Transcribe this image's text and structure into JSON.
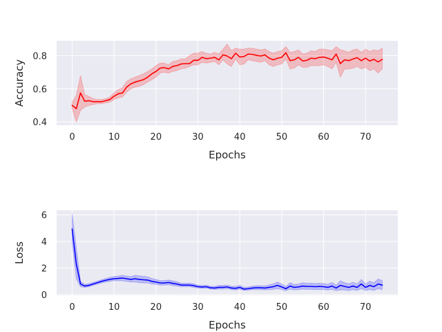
{
  "chart_data": [
    {
      "type": "line",
      "xlabel": "Epochs",
      "ylabel": "Accuracy",
      "xlim": [
        -3.7,
        77.7
      ],
      "ylim": [
        0.38,
        0.89
      ],
      "xticks": [
        0,
        10,
        20,
        30,
        40,
        50,
        60,
        70
      ],
      "yticks": [
        0.4,
        0.6,
        0.8
      ],
      "ytick_labels": [
        "0.4",
        "0.6",
        "0.8"
      ],
      "background": "#eaeaf2",
      "grid": true,
      "line_color": "#ff0000",
      "band_color": "#ff0000",
      "series": [
        {
          "x": [
            0,
            1,
            2,
            3,
            4,
            5,
            6,
            7,
            8,
            9,
            10,
            11,
            12,
            13,
            14,
            15,
            16,
            17,
            18,
            19,
            20,
            21,
            22,
            23,
            24,
            25,
            26,
            27,
            28,
            29,
            30,
            31,
            32,
            33,
            34,
            35,
            36,
            37,
            38,
            39,
            40,
            41,
            42,
            43,
            44,
            45,
            46,
            47,
            48,
            49,
            50,
            51,
            52,
            53,
            54,
            55,
            56,
            57,
            58,
            59,
            60,
            61,
            62,
            63,
            64,
            65,
            66,
            67,
            68,
            69,
            70,
            71,
            72,
            73,
            74
          ],
          "y": [
            0.5,
            0.48,
            0.575,
            0.525,
            0.528,
            0.522,
            0.522,
            0.522,
            0.528,
            0.535,
            0.555,
            0.57,
            0.575,
            0.61,
            0.63,
            0.64,
            0.648,
            0.655,
            0.67,
            0.69,
            0.705,
            0.725,
            0.728,
            0.72,
            0.735,
            0.74,
            0.75,
            0.752,
            0.752,
            0.772,
            0.772,
            0.79,
            0.782,
            0.785,
            0.79,
            0.775,
            0.805,
            0.798,
            0.782,
            0.815,
            0.792,
            0.795,
            0.81,
            0.808,
            0.802,
            0.798,
            0.805,
            0.785,
            0.775,
            0.785,
            0.79,
            0.818,
            0.77,
            0.775,
            0.79,
            0.768,
            0.772,
            0.785,
            0.782,
            0.79,
            0.792,
            0.785,
            0.775,
            0.81,
            0.752,
            0.775,
            0.77,
            0.78,
            0.788,
            0.77,
            0.785,
            0.768,
            0.778,
            0.762,
            0.778
          ],
          "lower": [
            0.48,
            0.4,
            0.47,
            0.49,
            0.5,
            0.505,
            0.51,
            0.51,
            0.515,
            0.52,
            0.535,
            0.545,
            0.55,
            0.58,
            0.6,
            0.61,
            0.615,
            0.625,
            0.64,
            0.655,
            0.67,
            0.695,
            0.7,
            0.695,
            0.705,
            0.71,
            0.72,
            0.725,
            0.735,
            0.745,
            0.745,
            0.76,
            0.755,
            0.76,
            0.765,
            0.745,
            0.775,
            0.75,
            0.735,
            0.78,
            0.745,
            0.75,
            0.775,
            0.77,
            0.765,
            0.76,
            0.77,
            0.745,
            0.735,
            0.745,
            0.75,
            0.78,
            0.72,
            0.725,
            0.745,
            0.73,
            0.73,
            0.74,
            0.74,
            0.74,
            0.745,
            0.735,
            0.72,
            0.76,
            0.67,
            0.72,
            0.72,
            0.725,
            0.735,
            0.72,
            0.73,
            0.71,
            0.72,
            0.695,
            0.72
          ],
          "upper": [
            0.52,
            0.56,
            0.68,
            0.565,
            0.555,
            0.54,
            0.535,
            0.535,
            0.54,
            0.55,
            0.575,
            0.595,
            0.605,
            0.645,
            0.66,
            0.67,
            0.68,
            0.69,
            0.705,
            0.72,
            0.74,
            0.755,
            0.755,
            0.745,
            0.765,
            0.77,
            0.78,
            0.78,
            0.8,
            0.815,
            0.815,
            0.825,
            0.815,
            0.81,
            0.82,
            0.81,
            0.84,
            0.87,
            0.83,
            0.845,
            0.84,
            0.84,
            0.845,
            0.845,
            0.84,
            0.835,
            0.84,
            0.825,
            0.815,
            0.825,
            0.83,
            0.855,
            0.82,
            0.825,
            0.835,
            0.81,
            0.815,
            0.83,
            0.825,
            0.84,
            0.84,
            0.835,
            0.83,
            0.855,
            0.835,
            0.83,
            0.82,
            0.835,
            0.84,
            0.82,
            0.84,
            0.825,
            0.835,
            0.83,
            0.845
          ]
        }
      ]
    },
    {
      "type": "line",
      "xlabel": "Epochs",
      "ylabel": "Loss",
      "xlim": [
        -3.7,
        77.7
      ],
      "ylim": [
        -0.05,
        6.35
      ],
      "xticks": [
        0,
        10,
        20,
        30,
        40,
        50,
        60,
        70
      ],
      "yticks": [
        0,
        2,
        4,
        6
      ],
      "ytick_labels": [
        "0",
        "2",
        "4",
        "6"
      ],
      "background": "#eaeaf2",
      "grid": true,
      "line_color": "#0000ff",
      "band_color": "#0000ff",
      "series": [
        {
          "x": [
            0,
            1,
            2,
            3,
            4,
            5,
            6,
            7,
            8,
            9,
            10,
            11,
            12,
            13,
            14,
            15,
            16,
            17,
            18,
            19,
            20,
            21,
            22,
            23,
            24,
            25,
            26,
            27,
            28,
            29,
            30,
            31,
            32,
            33,
            34,
            35,
            36,
            37,
            38,
            39,
            40,
            41,
            42,
            43,
            44,
            45,
            46,
            47,
            48,
            49,
            50,
            51,
            52,
            53,
            54,
            55,
            56,
            57,
            58,
            59,
            60,
            61,
            62,
            63,
            64,
            65,
            66,
            67,
            68,
            69,
            70,
            71,
            72,
            73,
            74
          ],
          "y": [
            4.95,
            2.3,
            0.8,
            0.65,
            0.7,
            0.8,
            0.9,
            1.0,
            1.08,
            1.15,
            1.2,
            1.22,
            1.25,
            1.2,
            1.15,
            1.2,
            1.15,
            1.12,
            1.1,
            1.0,
            0.95,
            0.88,
            0.88,
            0.92,
            0.85,
            0.8,
            0.72,
            0.72,
            0.72,
            0.68,
            0.6,
            0.58,
            0.6,
            0.52,
            0.5,
            0.55,
            0.55,
            0.58,
            0.5,
            0.48,
            0.55,
            0.42,
            0.45,
            0.5,
            0.52,
            0.52,
            0.5,
            0.55,
            0.6,
            0.7,
            0.58,
            0.45,
            0.65,
            0.55,
            0.58,
            0.65,
            0.62,
            0.62,
            0.6,
            0.62,
            0.6,
            0.55,
            0.65,
            0.5,
            0.7,
            0.62,
            0.55,
            0.65,
            0.55,
            0.8,
            0.55,
            0.7,
            0.6,
            0.8,
            0.72
          ],
          "lower": [
            3.9,
            1.2,
            0.6,
            0.55,
            0.6,
            0.7,
            0.78,
            0.88,
            0.95,
            1.0,
            1.05,
            1.05,
            1.05,
            1.0,
            0.95,
            0.95,
            0.9,
            0.88,
            0.88,
            0.8,
            0.78,
            0.72,
            0.72,
            0.75,
            0.68,
            0.65,
            0.6,
            0.6,
            0.6,
            0.55,
            0.5,
            0.48,
            0.5,
            0.42,
            0.4,
            0.42,
            0.42,
            0.45,
            0.38,
            0.35,
            0.42,
            0.32,
            0.34,
            0.38,
            0.38,
            0.38,
            0.36,
            0.38,
            0.4,
            0.45,
            0.38,
            0.3,
            0.42,
            0.36,
            0.38,
            0.42,
            0.4,
            0.4,
            0.38,
            0.4,
            0.38,
            0.35,
            0.4,
            0.3,
            0.35,
            0.35,
            0.3,
            0.38,
            0.32,
            0.45,
            0.32,
            0.38,
            0.32,
            0.45,
            0.38
          ],
          "upper": [
            6.1,
            3.5,
            1.0,
            0.78,
            0.82,
            0.92,
            1.02,
            1.12,
            1.22,
            1.3,
            1.36,
            1.4,
            1.45,
            1.4,
            1.36,
            1.45,
            1.42,
            1.38,
            1.34,
            1.22,
            1.14,
            1.06,
            1.06,
            1.1,
            1.04,
            0.98,
            0.86,
            0.86,
            0.86,
            0.82,
            0.72,
            0.7,
            0.72,
            0.64,
            0.62,
            0.7,
            0.7,
            0.72,
            0.64,
            0.62,
            0.7,
            0.55,
            0.58,
            0.64,
            0.68,
            0.68,
            0.66,
            0.74,
            0.82,
            0.95,
            0.8,
            0.62,
            0.9,
            0.76,
            0.8,
            0.9,
            0.86,
            0.86,
            0.84,
            0.86,
            0.84,
            0.78,
            0.92,
            0.72,
            1.05,
            0.9,
            0.82,
            0.94,
            0.8,
            1.15,
            0.8,
            1.02,
            0.9,
            1.18,
            1.06
          ]
        }
      ]
    }
  ]
}
